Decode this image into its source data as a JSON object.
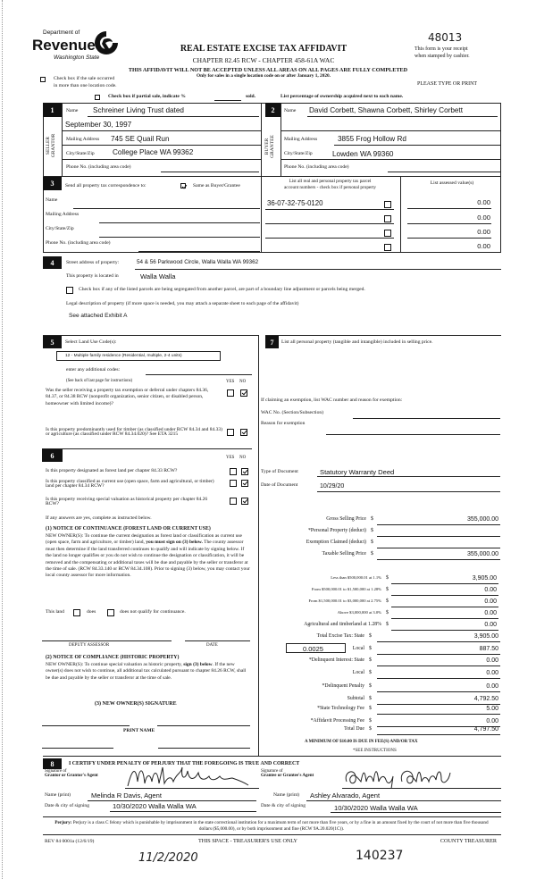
{
  "header": {
    "logo_dept": "Department of",
    "logo_name": "Revenue",
    "logo_state": "Washington State",
    "title": "REAL ESTATE EXCISE TAX AFFIDAVIT",
    "chapter": "CHAPTER 82.45 RCW - CHAPTER 458-61A WAC",
    "warning": "THIS AFFIDAVIT WILL NOT BE ACCEPTED UNLESS ALL AREAS ON ALL PAGES ARE FULLY COMPLETED",
    "only_for": "Only for sales in a single location code on or after January 1, 2020.",
    "handwritten_number": "48013",
    "receipt_1": "This form is your receipt",
    "receipt_2": "when stamped by cashier.",
    "please_print": "PLEASE TYPE OR PRINT",
    "multi_location_1": "Check box if the sale occurred",
    "multi_location_2": "in more than one location code.",
    "multi_location_checked": false,
    "partial_sale_label": "Check box if partial sale, indicate %",
    "partial_sale_sold": "sold.",
    "partial_sale_checked": false,
    "ownership_note": "List percentage of ownership acquired next to each name."
  },
  "seller": {
    "number": "1",
    "side_label_1": "SELLER",
    "side_label_2": "GRANTOR",
    "name_label": "Name",
    "name": "Schreiner Living Trust dated",
    "name_line2": "September 30, 1997",
    "mailing_label": "Mailing Address",
    "mailing": "745 SE Quail Run",
    "city_label": "City/State/Zip",
    "city": "College Place WA 99362",
    "phone_label": "Phone No. (including area code)"
  },
  "buyer": {
    "number": "2",
    "side_label_1": "BUYER",
    "side_label_2": "GRANTEE",
    "name_label": "Name",
    "name": "David Corbett, Shawna Corbett, Shirley Corbett",
    "mailing_label": "Mailing Address",
    "mailing": "3855 Frog Hollow Rd",
    "city_label": "City/State/Zip",
    "city": "Lowden WA 99360",
    "phone_label": "Phone No. (including area code)"
  },
  "section3": {
    "number": "3",
    "send_label": "Send all property tax correspondence to:",
    "same_as_label": "Same as Buyer/Grantee",
    "same_as_checked": true,
    "name_label": "Name",
    "mailing_label": "Mailing Address",
    "city_label": "City/State/Zip",
    "phone_label": "Phone No. (including area code)",
    "parcel_header_1": "List all real and personal property tax parcel",
    "parcel_header_2": "account numbers - check box if personal property",
    "assessed_header": "List assessed value(s)",
    "parcels": [
      {
        "number": "36-07-32-75-0120",
        "personal": false,
        "value": "0.00"
      },
      {
        "number": "",
        "personal": false,
        "value": "0.00"
      },
      {
        "number": "",
        "personal": false,
        "value": "0.00"
      },
      {
        "number": "",
        "personal": false,
        "value": "0.00"
      }
    ]
  },
  "section4": {
    "number": "4",
    "street_label": "Street address of property:",
    "street": "54 & 56 Parkwood Circle, Walla Walla WA 99362",
    "located_label": "This property is located in",
    "located": "Walla Walla",
    "segregated_label": "Check box if any of the listed parcels are being segregated from another parcel, are part of a boundary line adjustment or parcels being merged.",
    "segregated_checked": false,
    "legal_label": "Legal description of property (if more space is needed, you may attach a separate sheet to each page of the affidavit)",
    "legal": "See attached Exhibit A"
  },
  "section5": {
    "number": "5",
    "label": "Select Land Use Code(s):",
    "land_use": "12 - Multiple family residence (Residential, multiple, 2-4 units)",
    "additional_label": "enter any additional codes:",
    "see_back": "(See back of last page for instructions)",
    "yes": "YES",
    "no": "NO",
    "q1": "Was the seller receiving a property tax exemption or deferral under chapters 84.36, 84.37, or 84.38 RCW (nonprofit organization, senior citizen, or disabled person, homeowner with limited income)?",
    "q1_yes": false,
    "q1_no": true,
    "q2": "Is this property predominantly used for timber (as classified under RCW 84.34 and 84.33) or agriculture (as classified under RCW 84.34.020)? See ETA 3215",
    "q2_yes": false,
    "q2_no": true
  },
  "section6": {
    "number": "6",
    "yes": "YES",
    "no": "NO",
    "q_forest": "Is this property designated as forest land per chapter 84.33 RCW?",
    "q_current": "Is this property classified as current use (open space, farm and agricultural, or timber) land per chapter 84.34 RCW?",
    "q_historic": "Is this property receiving special valuation as historical property per chapter 84.26 RCW?",
    "q_forest_no": true,
    "q_current_no": true,
    "q_historic_no": true,
    "if_any": "If any answers are yes, complete as instructed below.",
    "notice1_title": "(1) NOTICE OF CONTINUANCE (FOREST LAND OR CURRENT USE)",
    "notice1_a": "NEW OWNER(S): To continue the current designation as forest land or classification as current use (open space, farm and agriculture, or timber) land, ",
    "notice1_bold": "you must sign on (3) below.",
    "notice1_b": " The county assessor must then determine if the land transferred continues to qualify and will indicate by signing below. If the land no longer qualifies or you do not wish to continue the designation or classification, it will be removed and the compensating or additional taxes will be due and payable by the seller or transferor at the time of sale. (RCW 84.33.140 or RCW 84.34.108). Prior to signing (3) below, you may contact your local county assessor for more information.",
    "this_land": "This land",
    "does": "does",
    "does_not": "does not qualify for continuance.",
    "deputy_assessor": "DEPUTY ASSESSOR",
    "date": "DATE",
    "notice2_title": "(2) NOTICE OF COMPLIANCE (HISTORIC PROPERTY)",
    "notice2_a": "NEW OWNER(S): To continue special valuation as historic property, ",
    "notice2_bold": "sign (3) below",
    "notice2_b": ". If the new owner(s) does not wish to continue, all additional tax calculated pursuant to chapter 84.26 RCW, shall be due and payable by the seller or transferor at the time of sale.",
    "new_owner_sig": "(3) NEW OWNER(S) SIGNATURE",
    "print_name": "PRINT NAME"
  },
  "section7": {
    "number": "7",
    "label": "List all personal property (tangible and intangible) included in selling price.",
    "exemption_label": "If claiming an exemption, list WAC number and reason for exemption:",
    "wac_label": "WAC No. (Section/Subsection)",
    "reason_label": "Reason for exemption",
    "doc_type_label": "Type of Document",
    "doc_type": "Statutory Warranty Deed",
    "doc_date_label": "Date of Document",
    "doc_date": "10/29/20",
    "tax_rate": "0.0025",
    "excise_state_label": "Excise Tax: State",
    "min_note": "A MINIMUM OF $10.00 IS DUE IN FEE(S) AND/OR TAX",
    "see_instructions": "*SEE INSTRUCTIONS",
    "amounts": [
      {
        "label": "Gross Selling Price",
        "value": "355,000.00"
      },
      {
        "label": "*Personal Property (deduct)",
        "value": ""
      },
      {
        "label": "Exemption Claimed (deduct)",
        "value": ""
      },
      {
        "label": "Taxable Selling Price",
        "value": "355,000.00"
      }
    ],
    "brackets": [
      {
        "label": "Less than $500,000.01 at 1.1%",
        "value": "3,905.00"
      },
      {
        "label": "From $500,000.01 to $1,500,000 at 1.28%",
        "value": "0.00"
      },
      {
        "label": "From $1,500,000.01 to $3,000,000 at 2.75%",
        "value": "0.00"
      },
      {
        "label": "Above $3,000,000 at 3.0%",
        "value": "0.00"
      },
      {
        "label": "Agricultural and timberland at 1.28%",
        "value": "0.00"
      }
    ],
    "totals": [
      {
        "label": "Total Excise Tax: State",
        "value": "3,905.00"
      },
      {
        "label": "Local",
        "value": "887.50"
      },
      {
        "label": "*Delinquent Interest: State",
        "value": "0.00"
      },
      {
        "label": "Local",
        "value": "0.00"
      },
      {
        "label": "*Delinquent Penalty",
        "value": "0.00"
      },
      {
        "label": "Subtotal",
        "value": "4,792.50"
      },
      {
        "label": "*State Technology Fee",
        "value": "5.00"
      },
      {
        "label": "*Affidavit Processing Fee",
        "value": "0.00"
      },
      {
        "label": "Total Due",
        "value": "4,797.50"
      }
    ],
    "currency": "$"
  },
  "section8": {
    "number": "8",
    "certify": "I CERTIFY UNDER PENALTY OF PERJURY THAT THE FOREGOING IS TRUE AND CORRECT",
    "sig_of": "Signature of",
    "grantor_agent": "Grantor or Grantor's Agent",
    "grantee_agent": "Grantee or Grantee's Agent",
    "name_print_label": "Name (print)",
    "date_city_label": "Date & city of signing",
    "grantor_name": "Melinda R Davis, Agent",
    "grantor_date_city": "10/30/2020 Walla Walla WA",
    "grantee_name": "Ashley Alvarado, Agent",
    "grantee_date_city": "10/30/2020 Walla Walla WA",
    "perjury_bold": "Perjury:",
    "perjury_text": " Perjury is a class C felony which is punishable by imprisonment in the state correctional institution for a maximum term of not more than five years, or by a fine in an amount fixed by the court of not more than five thousand dollars ($5,000.00), or by both imprisonment and fine (RCW 9A.20.020(1C))."
  },
  "footer": {
    "rev": "REV 84 0001a (12/6/19)",
    "treasurer_use": "THIS SPACE - TREASURER'S USE ONLY",
    "county_treasurer": "COUNTY TREASURER",
    "handwritten_date": "11/2/2020",
    "handwritten_number": "140237"
  }
}
